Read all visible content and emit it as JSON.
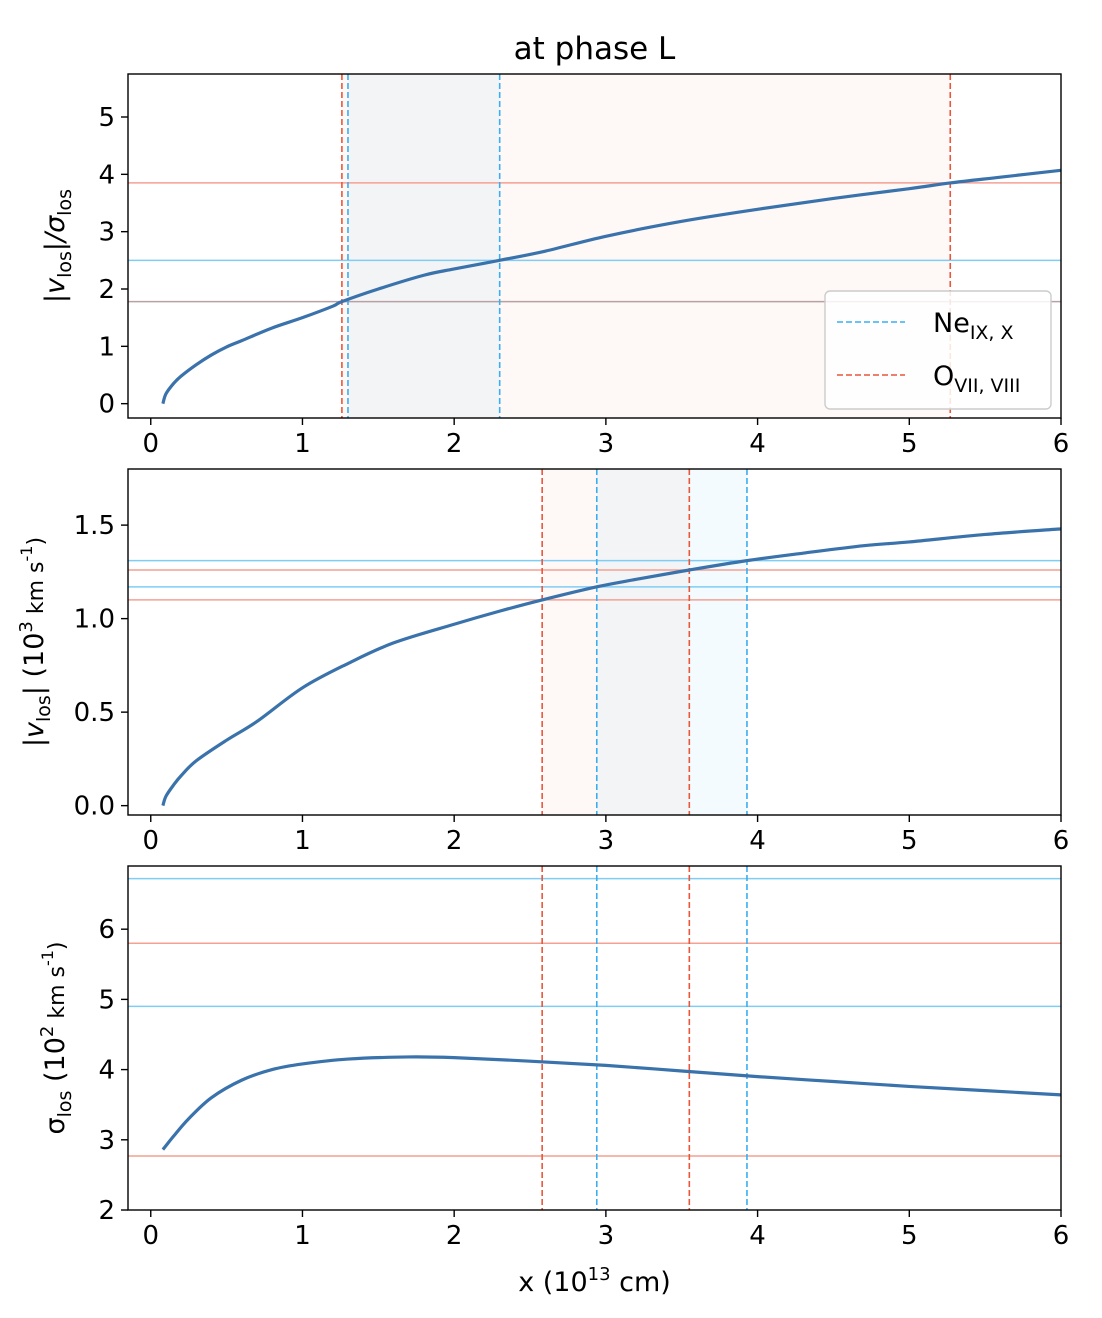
{
  "chart_data": [
    {
      "type": "line",
      "title": "at phase L",
      "ylabel_parts": {
        "main": "|v",
        "sub": "los",
        "mid": "|/σ",
        "sub2": "los"
      },
      "xlabel": "",
      "xlim": [
        -0.15,
        6.0
      ],
      "ylim": [
        -0.25,
        5.75
      ],
      "xticks": [
        0,
        1,
        2,
        3,
        4,
        5,
        6
      ],
      "yticks": [
        0,
        1,
        2,
        3,
        4,
        5
      ],
      "ytick_labels": [
        "0",
        "1",
        "2",
        "3",
        "4",
        "5"
      ],
      "curve": {
        "name": "|v_los|/σ_los",
        "color": "#3a72ac",
        "x": [
          0.08,
          0.1,
          0.15,
          0.2,
          0.3,
          0.4,
          0.5,
          0.6,
          0.8,
          1.0,
          1.2,
          1.26,
          1.5,
          1.8,
          2.0,
          2.3,
          2.6,
          3.0,
          3.5,
          4.0,
          4.5,
          5.0,
          5.27,
          5.6,
          6.0
        ],
        "y": [
          0.0,
          0.17,
          0.35,
          0.48,
          0.68,
          0.85,
          0.99,
          1.1,
          1.32,
          1.5,
          1.7,
          1.78,
          2.0,
          2.24,
          2.35,
          2.5,
          2.66,
          2.92,
          3.18,
          3.39,
          3.58,
          3.75,
          3.85,
          3.95,
          4.07
        ]
      },
      "hlines": [
        {
          "y": 3.85,
          "color": "#f4a092"
        },
        {
          "y": 2.5,
          "color": "#7fcdf5"
        },
        {
          "y": 1.78,
          "color": "#b8a0a4"
        }
      ],
      "vlines": [
        {
          "x": 1.26,
          "color": "#e8573a"
        },
        {
          "x": 1.3,
          "color": "#3aaef0"
        },
        {
          "x": 2.3,
          "color": "#3aaef0"
        },
        {
          "x": 5.27,
          "color": "#e8573a"
        }
      ],
      "spans": [
        {
          "x0": 1.3,
          "x1": 2.3,
          "color": "#3aaef0",
          "opacity": 0.055
        },
        {
          "x0": 1.26,
          "x1": 5.27,
          "color": "#e8573a",
          "opacity": 0.04
        }
      ],
      "legend": {
        "position": "lower right",
        "entries": [
          {
            "main": "Ne",
            "sub": "IX, X",
            "color": "#3aaef0"
          },
          {
            "main": "O",
            "sub": "VII, VIII",
            "color": "#e8573a"
          }
        ]
      }
    },
    {
      "type": "line",
      "title": "",
      "ylabel_parts": {
        "main": "|v",
        "sub": "los",
        "mid": "|  (10",
        "sup": "3",
        "tail": " km s",
        "sup2": "-1",
        "end": ")"
      },
      "xlabel": "",
      "xlim": [
        -0.15,
        6.0
      ],
      "ylim": [
        -0.05,
        1.8
      ],
      "xticks": [
        0,
        1,
        2,
        3,
        4,
        5,
        6
      ],
      "yticks": [
        0.0,
        0.5,
        1.0,
        1.5
      ],
      "ytick_labels": [
        "0.0",
        "0.5",
        "1.0",
        "1.5"
      ],
      "curve": {
        "name": "|v_los|",
        "color": "#3a72ac",
        "x": [
          0.08,
          0.1,
          0.15,
          0.2,
          0.3,
          0.5,
          0.7,
          1.0,
          1.3,
          1.6,
          2.0,
          2.3,
          2.58,
          2.94,
          3.2,
          3.55,
          3.93,
          4.3,
          4.7,
          5.0,
          5.5,
          6.0
        ],
        "y": [
          0.0,
          0.05,
          0.11,
          0.16,
          0.24,
          0.35,
          0.45,
          0.63,
          0.76,
          0.87,
          0.97,
          1.04,
          1.1,
          1.17,
          1.21,
          1.26,
          1.31,
          1.35,
          1.39,
          1.41,
          1.45,
          1.48
        ]
      },
      "hlines": [
        {
          "y": 1.31,
          "color": "#7fcdf5"
        },
        {
          "y": 1.26,
          "color": "#f4a092"
        },
        {
          "y": 1.17,
          "color": "#7fcdf5"
        },
        {
          "y": 1.1,
          "color": "#f4a092"
        }
      ],
      "vlines": [
        {
          "x": 2.58,
          "color": "#e8573a"
        },
        {
          "x": 2.94,
          "color": "#3aaef0"
        },
        {
          "x": 3.55,
          "color": "#e8573a"
        },
        {
          "x": 3.93,
          "color": "#3aaef0"
        }
      ],
      "spans": [
        {
          "x0": 2.58,
          "x1": 3.55,
          "color": "#e8573a",
          "opacity": 0.045
        },
        {
          "x0": 2.94,
          "x1": 3.93,
          "color": "#3aaef0",
          "opacity": 0.055
        }
      ]
    },
    {
      "type": "line",
      "title": "",
      "ylabel_parts": {
        "main": "σ",
        "sub": "los",
        "mid": "  (10",
        "sup": "2",
        "tail": " km s",
        "sup2": "-1",
        "end": ")"
      },
      "xlabel": "x (10",
      "xlabel_sup": "13",
      "xlabel_tail": " cm)",
      "xlim": [
        -0.15,
        6.0
      ],
      "ylim": [
        2.0,
        6.9
      ],
      "xticks": [
        0,
        1,
        2,
        3,
        4,
        5,
        6
      ],
      "yticks": [
        2,
        3,
        4,
        5,
        6
      ],
      "ytick_labels": [
        "2",
        "3",
        "4",
        "5",
        "6"
      ],
      "curve": {
        "name": "σ_los",
        "color": "#3a72ac",
        "x": [
          0.08,
          0.15,
          0.25,
          0.4,
          0.6,
          0.8,
          1.0,
          1.3,
          1.7,
          2.0,
          2.5,
          3.0,
          3.5,
          4.0,
          4.5,
          5.0,
          5.5,
          6.0
        ],
        "y": [
          2.86,
          3.05,
          3.3,
          3.6,
          3.85,
          4.0,
          4.08,
          4.15,
          4.18,
          4.17,
          4.12,
          4.06,
          3.98,
          3.9,
          3.83,
          3.76,
          3.7,
          3.64
        ]
      },
      "hlines": [
        {
          "y": 6.72,
          "color": "#7fcdf5"
        },
        {
          "y": 5.8,
          "color": "#f4a092"
        },
        {
          "y": 4.9,
          "color": "#7fcdf5"
        },
        {
          "y": 2.77,
          "color": "#f4a092"
        }
      ],
      "vlines": [
        {
          "x": 2.58,
          "color": "#e8573a"
        },
        {
          "x": 2.94,
          "color": "#3aaef0"
        },
        {
          "x": 3.55,
          "color": "#e8573a"
        },
        {
          "x": 3.93,
          "color": "#3aaef0"
        }
      ],
      "spans": []
    }
  ]
}
